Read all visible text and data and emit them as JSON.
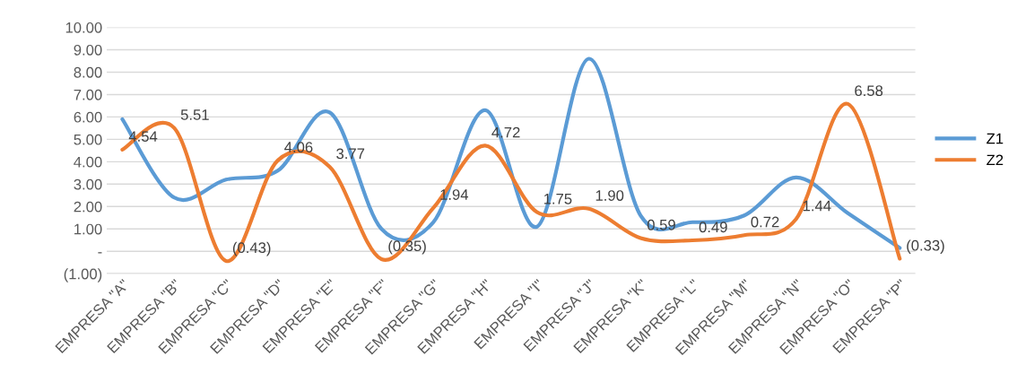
{
  "chart_data": {
    "type": "line",
    "categories": [
      "EMPRESA \"A\"",
      "EMPRESA \"B\"",
      "EMPRESA \"C\"",
      "EMPRESA \"D\"",
      "EMPRESA \"E\"",
      "EMPRESA \"F\"",
      "EMPRESA \"G\"",
      "EMPRESA \"H\"",
      "EMPRESA \"I\"",
      "EMPRESA \"J\"",
      "EMPRESA \"K\"",
      "EMPRESA \"L\"",
      "EMPRESA \"M\"",
      "EMPRESA \"N\"",
      "EMPRESA \"O\"",
      "EMPRESA \"P\""
    ],
    "series": [
      {
        "name": "Z1",
        "color": "#5b9bd5",
        "values": [
          5.9,
          2.4,
          3.2,
          3.6,
          6.2,
          1.0,
          1.3,
          6.3,
          1.1,
          8.6,
          1.6,
          1.3,
          1.6,
          3.3,
          1.7,
          0.15
        ]
      },
      {
        "name": "Z2",
        "color": "#ed7d31",
        "values": [
          4.54,
          5.51,
          -0.43,
          4.06,
          3.77,
          -0.35,
          1.94,
          4.72,
          1.75,
          1.9,
          0.59,
          0.49,
          0.72,
          1.44,
          6.58,
          -0.33
        ],
        "value_labels": [
          "4.54",
          "5.51",
          "(0.43)",
          "4.06",
          "3.77",
          "(0.35)",
          "1.94",
          "4.72",
          "1.75",
          "1.90",
          "0.59",
          "0.49",
          "0.72",
          "1.44",
          "6.58",
          "(0.33)"
        ]
      }
    ],
    "ylim": [
      -1,
      10
    ],
    "yticks": [
      {
        "value": -1,
        "label": "(1.00)"
      },
      {
        "value": 0,
        "label": "-"
      },
      {
        "value": 1,
        "label": "1.00"
      },
      {
        "value": 2,
        "label": "2.00"
      },
      {
        "value": 3,
        "label": "3.00"
      },
      {
        "value": 4,
        "label": "4.00"
      },
      {
        "value": 5,
        "label": "5.00"
      },
      {
        "value": 6,
        "label": "6.00"
      },
      {
        "value": 7,
        "label": "7.00"
      },
      {
        "value": 8,
        "label": "8.00"
      },
      {
        "value": 9,
        "label": "9.00"
      },
      {
        "value": 10,
        "label": "10.00"
      }
    ],
    "grid": "y",
    "legend": "right",
    "marker": "none",
    "line_style": "solid"
  }
}
